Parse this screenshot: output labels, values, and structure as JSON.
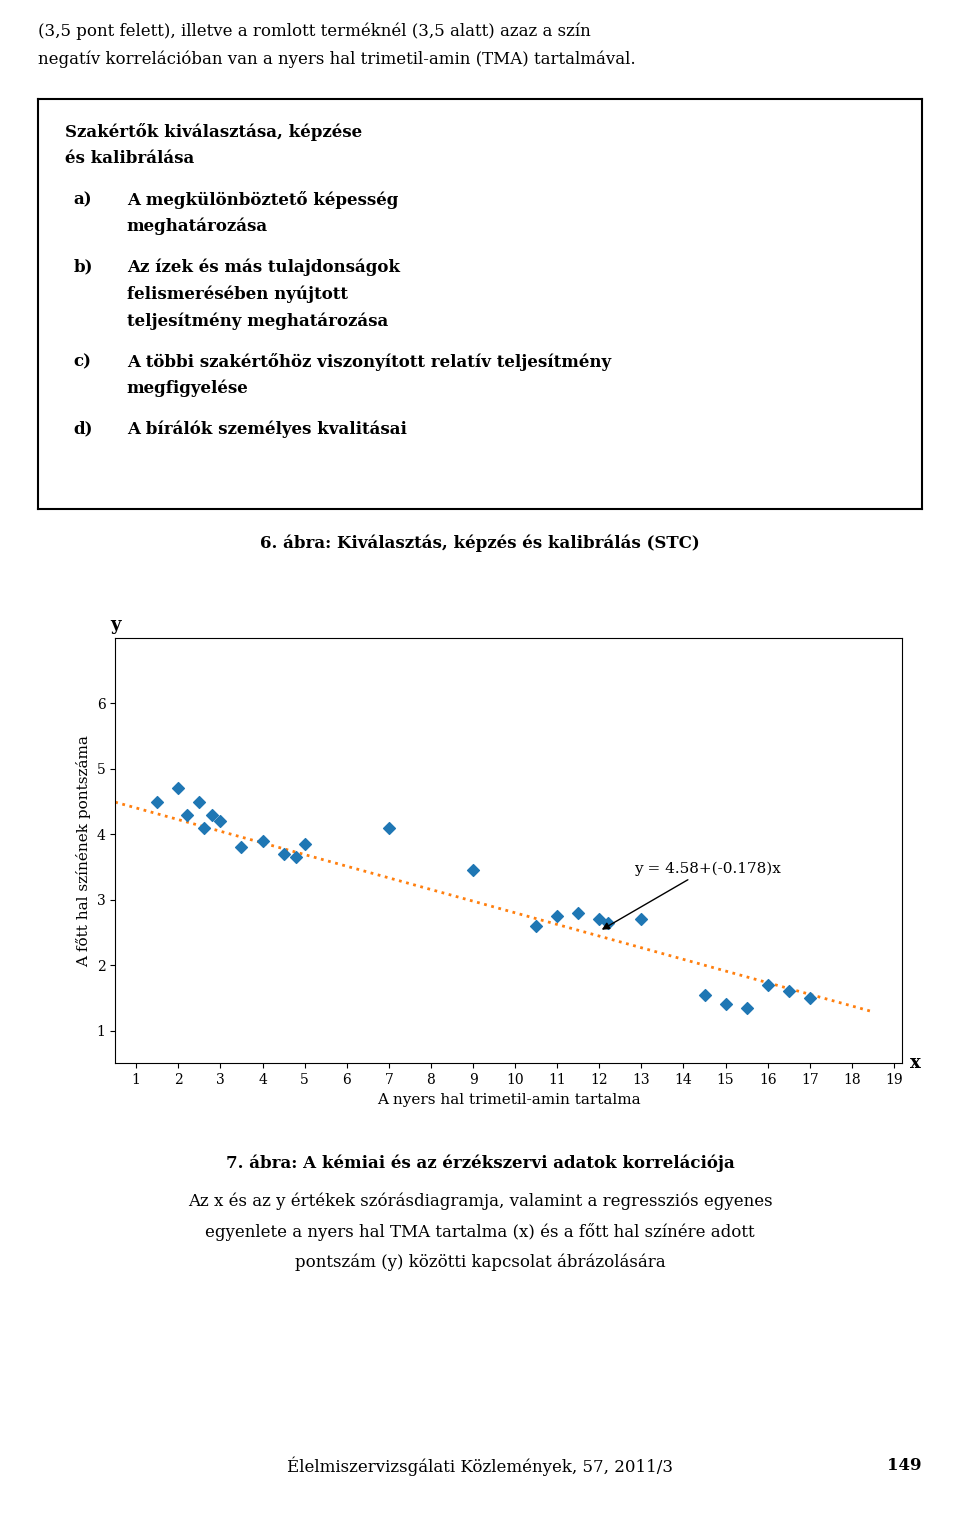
{
  "chart_data": {
    "type": "scatter",
    "title": "7. ábra: A kémiai és az érzékszervi adatok korrelációja",
    "subtitle": [
      "Az x és az y értékek szórásdiagramja, valamint a regressziós egyenes",
      "egyenlete a nyers hal TMA tartalma (x) és a főtt hal színére adott",
      "pontszám (y) közötti kapcsolat ábrázolására"
    ],
    "xlabel": "A nyers hal trimetil-amin tartalma",
    "ylabel": "A főtt hal színének pontszáma",
    "x_axis_name": "x",
    "y_axis_name": "y",
    "series": [
      {
        "type": "scatter",
        "marker": "diamond",
        "x": [
          1.5,
          2.0,
          2.2,
          2.5,
          2.6,
          2.8,
          3.0,
          3.5,
          4.0,
          4.5,
          4.8,
          5.0,
          7.0,
          9.0,
          10.5,
          11.0,
          11.5,
          12.0,
          12.2,
          13.0,
          14.5,
          15.0,
          15.5,
          16.0,
          16.5,
          17.0
        ],
        "values": [
          4.5,
          4.7,
          4.3,
          4.5,
          4.1,
          4.3,
          4.2,
          3.8,
          3.9,
          3.7,
          3.65,
          3.85,
          4.1,
          3.45,
          2.6,
          2.75,
          2.8,
          2.7,
          2.65,
          2.7,
          1.55,
          1.4,
          1.35,
          1.7,
          1.6,
          1.5
        ]
      },
      {
        "type": "line",
        "line_style": "dotted",
        "x": [
          0.5,
          18.5
        ],
        "values": [
          4.491,
          1.287
        ]
      }
    ],
    "annotations": [
      {
        "text": "y = 4.58+(-0.178)x",
        "x": 12.0,
        "y": 2.52
      }
    ],
    "xlim": [
      0.5,
      19.2
    ],
    "ylim": [
      0.5,
      7.0
    ],
    "xticks": [
      1,
      2,
      3,
      4,
      5,
      6,
      7,
      8,
      9,
      10,
      11,
      12,
      13,
      14,
      15,
      16,
      17,
      18,
      19
    ],
    "yticks": [
      1,
      2,
      3,
      4,
      5,
      6
    ],
    "grid": false
  },
  "page_text": {
    "intro": [
      "(3,5 pont felett), illetve a romlott terméknél (3,5 alatt) azaz a szín",
      "negatív korrelációban van a nyers hal trimetil-amin (TMA) tartalmával."
    ],
    "box_title": [
      "Szakértők kiválasztása, képzése",
      "és kalibrálása"
    ],
    "box_items": [
      {
        "label": "a)",
        "lines": [
          "A megkülönböztető képesség",
          "meghatározása"
        ]
      },
      {
        "label": "b)",
        "lines": [
          "Az ízek és más tulajdonságok",
          "felismerésében nyújtott",
          "teljesítmény meghatározása"
        ]
      },
      {
        "label": "c)",
        "lines": [
          "A többi szakértőhöz viszonyított relatív teljesítmény",
          "megfigyelése"
        ]
      },
      {
        "label": "d)",
        "lines": [
          "A bírálók személyes kvalitásai"
        ]
      }
    ],
    "box_caption": "6. ábra: Kiválasztás, képzés és kalibrálás (STC)",
    "footer": [
      "Élelmiszervizsgálati Közlemények, ",
      "57",
      ", 2011/3"
    ],
    "page_number": "149"
  }
}
